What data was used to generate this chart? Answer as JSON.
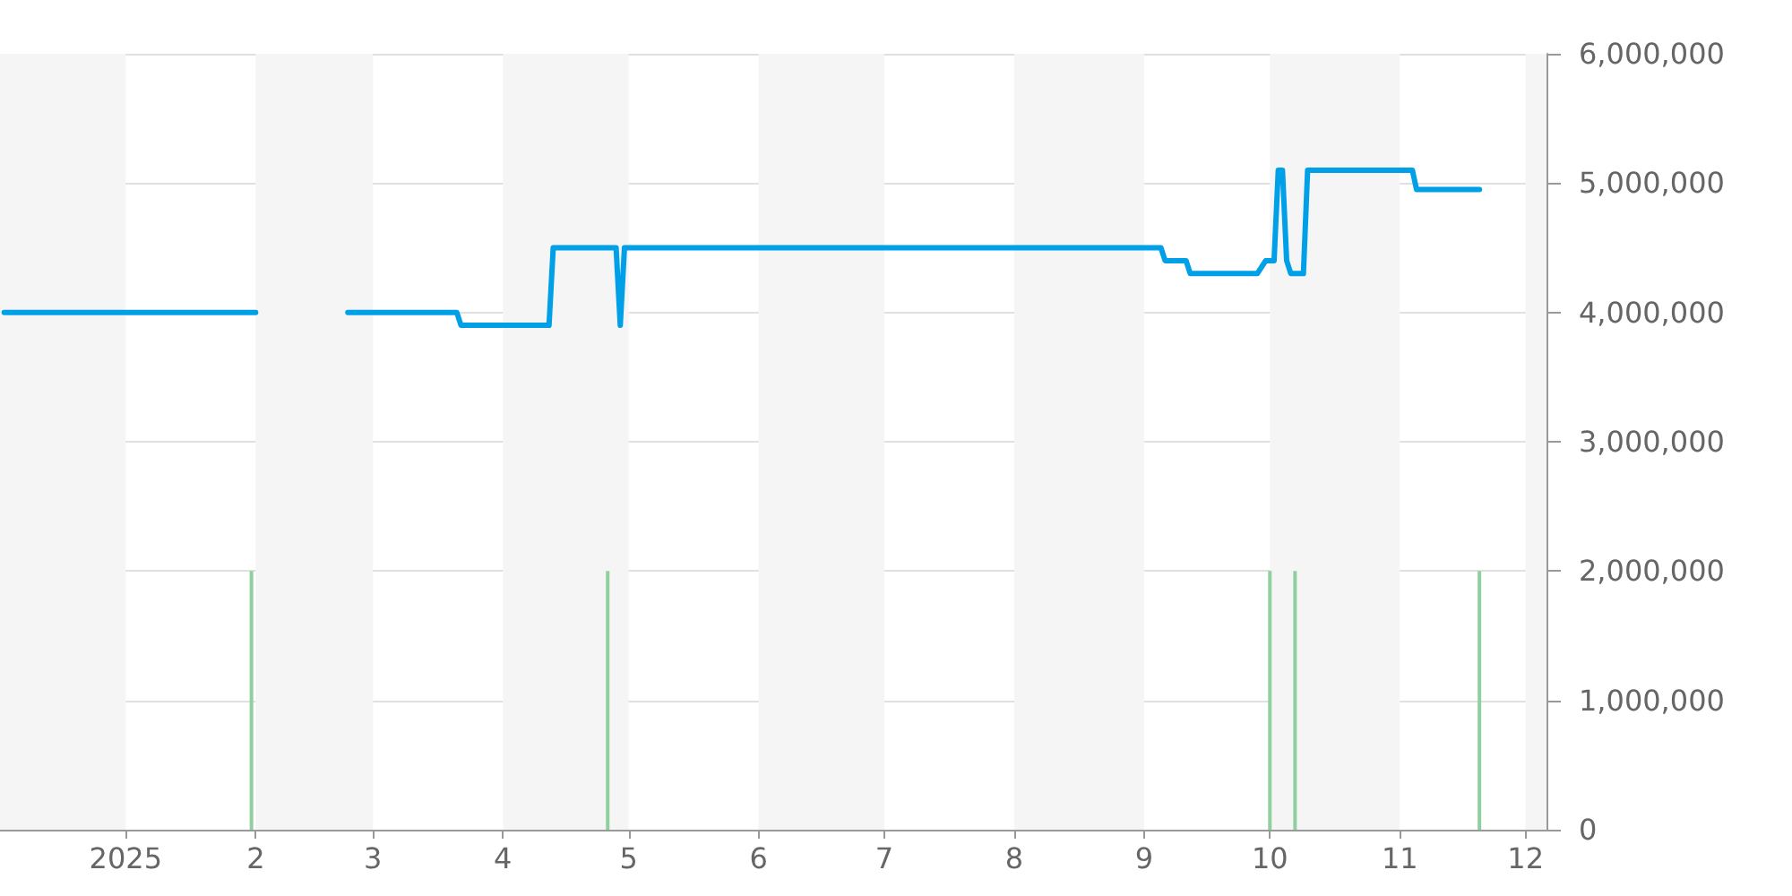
{
  "chart_data": {
    "type": "line",
    "xlim": [
      "2024-12-02",
      "2025-12-06"
    ],
    "xticks": [
      {
        "value": "2025-01-01",
        "label": "2025"
      },
      {
        "value": "2025-02-01",
        "label": "2"
      },
      {
        "value": "2025-03-01",
        "label": "3"
      },
      {
        "value": "2025-04-01",
        "label": "4"
      },
      {
        "value": "2025-05-01",
        "label": "5"
      },
      {
        "value": "2025-06-01",
        "label": "6"
      },
      {
        "value": "2025-07-01",
        "label": "7"
      },
      {
        "value": "2025-08-01",
        "label": "8"
      },
      {
        "value": "2025-09-01",
        "label": "9"
      },
      {
        "value": "2025-10-01",
        "label": "10"
      },
      {
        "value": "2025-11-01",
        "label": "11"
      },
      {
        "value": "2025-12-01",
        "label": "12"
      }
    ],
    "ylim": [
      0,
      6000000
    ],
    "yticks": [
      {
        "value": 0,
        "label": "0"
      },
      {
        "value": 1000000,
        "label": "1,000,000"
      },
      {
        "value": 2000000,
        "label": "2,000,000"
      },
      {
        "value": 3000000,
        "label": "3,000,000"
      },
      {
        "value": 4000000,
        "label": "4,000,000"
      },
      {
        "value": 5000000,
        "label": "5,000,000"
      },
      {
        "value": 6000000,
        "label": "6,000,000"
      }
    ],
    "grid": "y",
    "marker": "none",
    "line_style": "solid",
    "bands": [
      {
        "axis": "x",
        "from": "2024-12-02",
        "to": "2025-01-01",
        "color": "#f5f5f5"
      },
      {
        "axis": "x",
        "from": "2025-02-01",
        "to": "2025-03-01",
        "color": "#f5f5f5"
      },
      {
        "axis": "x",
        "from": "2025-04-01",
        "to": "2025-05-01",
        "color": "#f5f5f5"
      },
      {
        "axis": "x",
        "from": "2025-06-01",
        "to": "2025-07-01",
        "color": "#f5f5f5"
      },
      {
        "axis": "x",
        "from": "2025-08-01",
        "to": "2025-09-01",
        "color": "#f5f5f5"
      },
      {
        "axis": "x",
        "from": "2025-10-01",
        "to": "2025-11-01",
        "color": "#f5f5f5"
      },
      {
        "axis": "x",
        "from": "2025-12-01",
        "to": "2025-12-06",
        "color": "#f5f5f5"
      }
    ],
    "series": [
      {
        "type": "bar",
        "color": "#8fd19e",
        "x": [
          "2025-01-31",
          "2025-04-26",
          "2025-10-01",
          "2025-10-07",
          "2025-11-20"
        ],
        "values": [
          2000000,
          2000000,
          2000000,
          2000000,
          2000000
        ]
      },
      {
        "color": "#00a0e9",
        "x": [
          "2024-12-03",
          "2025-02-01",
          "2025-02-10",
          "2025-02-23",
          "2025-03-21",
          "2025-03-22",
          "2025-04-12",
          "2025-04-13",
          "2025-04-28",
          "2025-04-29",
          "2025-04-30",
          "2025-09-05",
          "2025-09-06",
          "2025-09-11",
          "2025-09-12",
          "2025-09-28",
          "2025-09-30",
          "2025-10-02",
          "2025-10-03",
          "2025-10-04",
          "2025-10-05",
          "2025-10-06",
          "2025-10-09",
          "2025-10-10",
          "2025-11-04",
          "2025-11-05",
          "2025-11-20"
        ],
        "values": [
          4000000,
          4000000,
          null,
          4000000,
          4000000,
          3900000,
          3900000,
          4500000,
          4500000,
          3900000,
          4500000,
          4500000,
          4400000,
          4400000,
          4300000,
          4300000,
          4400000,
          4400000,
          5100000,
          5100000,
          4400000,
          4300000,
          4300000,
          5100000,
          5100000,
          4950000,
          4950000
        ]
      }
    ]
  }
}
